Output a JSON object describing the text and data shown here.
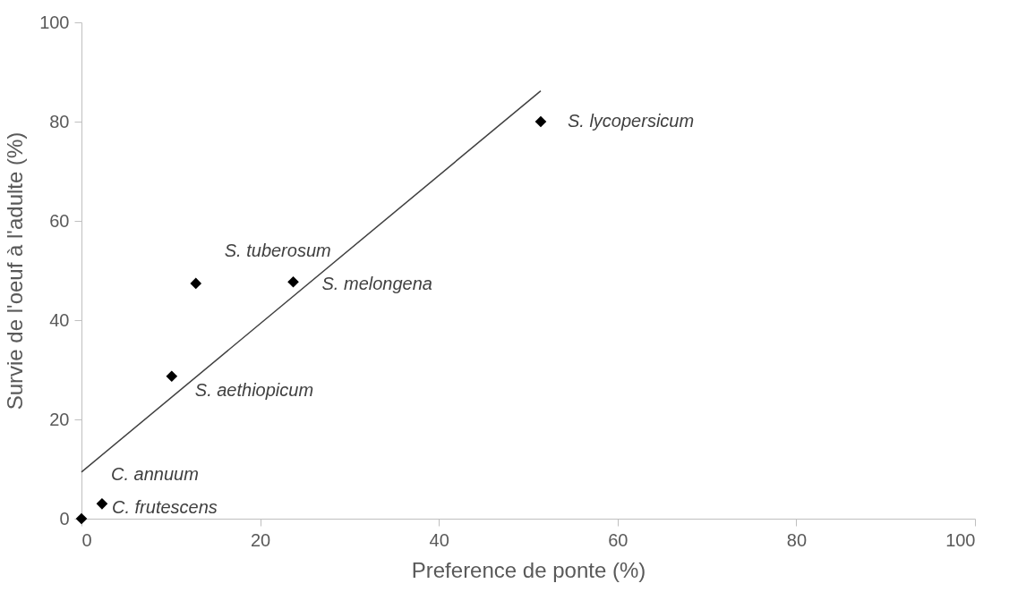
{
  "chart_data": {
    "type": "scatter",
    "xlabel": "Preference de ponte (%)",
    "ylabel": "Survie de l'oeuf à l'adulte (%)",
    "series": [
      {
        "color": "#000000",
        "marker": "diamond",
        "x": [
          0,
          2.3,
          10.1,
          12.8,
          23.7,
          51.4
        ],
        "values": [
          0,
          3.0,
          28.7,
          47.4,
          47.7,
          80.0
        ]
      },
      {
        "type": "line",
        "color": "#404040",
        "marker": "none",
        "line_style": "solid",
        "x": [
          0,
          51.4
        ],
        "values": [
          9.4,
          86.2
        ]
      }
    ],
    "annotations": [
      {
        "text": "C. frutescens",
        "x": 0,
        "y": 0
      },
      {
        "text": "C. annuum",
        "x": 2.3,
        "y": 3.0
      },
      {
        "text": "S. aethiopicum",
        "x": 10.1,
        "y": 28.7
      },
      {
        "text": "S. tuberosum",
        "x": 12.8,
        "y": 47.4
      },
      {
        "text": "S. melongena",
        "x": 23.7,
        "y": 47.7
      },
      {
        "text": "S. lycopersicum",
        "x": 51.4,
        "y": 80.0
      }
    ],
    "xlim": [
      0,
      100
    ],
    "ylim": [
      0,
      100
    ],
    "xticks": [
      0,
      20,
      40,
      60,
      80,
      100
    ],
    "yticks": [
      0,
      20,
      40,
      60,
      80,
      100
    ]
  }
}
